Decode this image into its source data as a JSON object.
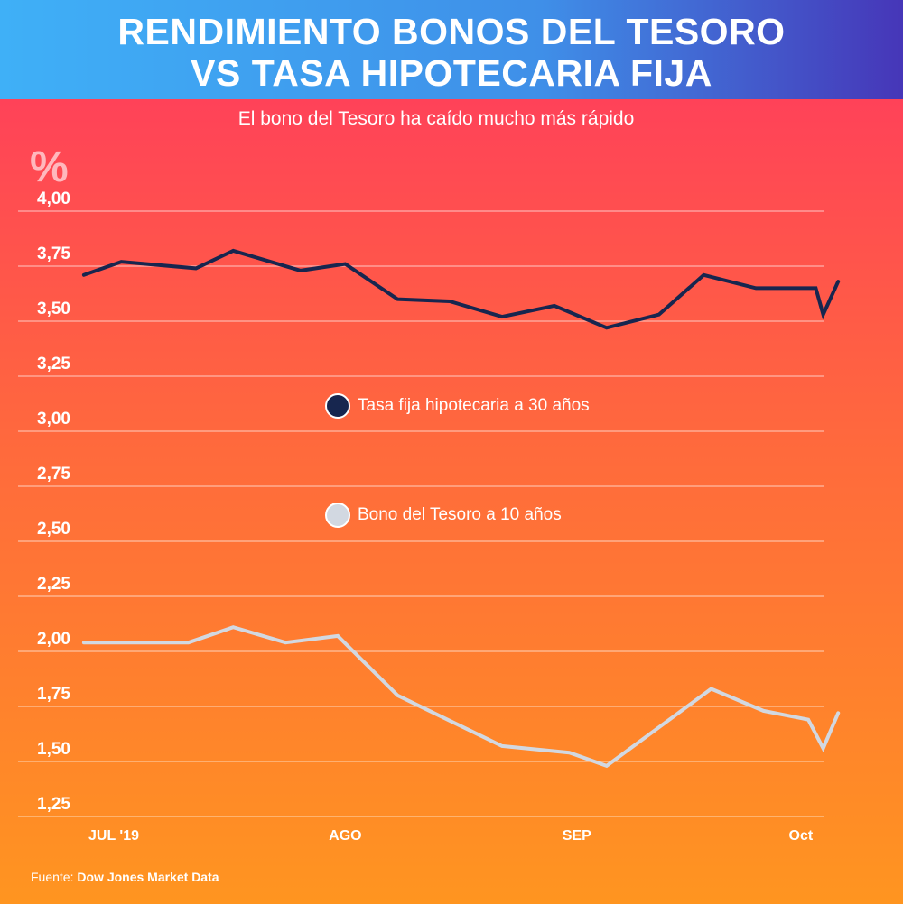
{
  "header": {
    "title_line1": "RENDIMIENTO BONOS DEL TESORO",
    "title_line2": "VS TASA HIPOTECARIA FIJA"
  },
  "subtitle": "El bono del Tesoro ha caído mucho más rápido",
  "footer": {
    "label": "Fuente:",
    "source": "Dow Jones Market Data"
  },
  "chart_data": {
    "type": "line",
    "title": "RENDIMIENTO BONOS DEL TESORO VS TASA HIPOTECARIA FIJA",
    "ylabel": "%",
    "ylim": [
      1.25,
      4.0
    ],
    "yticks": [
      "4,00",
      "3,75",
      "3,50",
      "3,25",
      "3,00",
      "2,75",
      "2,50",
      "2,25",
      "2,00",
      "1,75",
      "1,50",
      "1,25"
    ],
    "ytick_values": [
      4.0,
      3.75,
      3.5,
      3.25,
      3.0,
      2.75,
      2.5,
      2.25,
      2.0,
      1.75,
      1.5,
      1.25
    ],
    "x_unit": "days since Jul 1 2019",
    "xticks": [
      {
        "label": "JUL '19",
        "x": 0
      },
      {
        "label": "AGO",
        "x": 31
      },
      {
        "label": "SEP",
        "x": 62
      },
      {
        "label": "Oct",
        "x": 92
      }
    ],
    "grid": true,
    "series": [
      {
        "name": "Tasa fija hipotecaria a 30 años",
        "color": "#17264f",
        "x": [
          -4,
          1,
          11,
          16,
          25,
          31,
          38,
          45,
          52,
          59,
          66,
          73,
          79,
          86,
          94,
          95,
          97
        ],
        "y": [
          3.71,
          3.77,
          3.74,
          3.82,
          3.73,
          3.76,
          3.6,
          3.59,
          3.52,
          3.57,
          3.47,
          3.53,
          3.71,
          3.65,
          3.65,
          3.53,
          3.68
        ]
      },
      {
        "name": "Bono del Tesoro a 10 años",
        "color": "#d2d8e1",
        "x": [
          -4,
          10,
          16,
          23,
          30,
          38,
          52,
          61,
          66,
          80,
          87,
          93,
          95,
          97
        ],
        "y": [
          2.04,
          2.04,
          2.11,
          2.04,
          2.07,
          1.8,
          1.57,
          1.54,
          1.48,
          1.83,
          1.73,
          1.69,
          1.56,
          1.72
        ]
      }
    ]
  }
}
